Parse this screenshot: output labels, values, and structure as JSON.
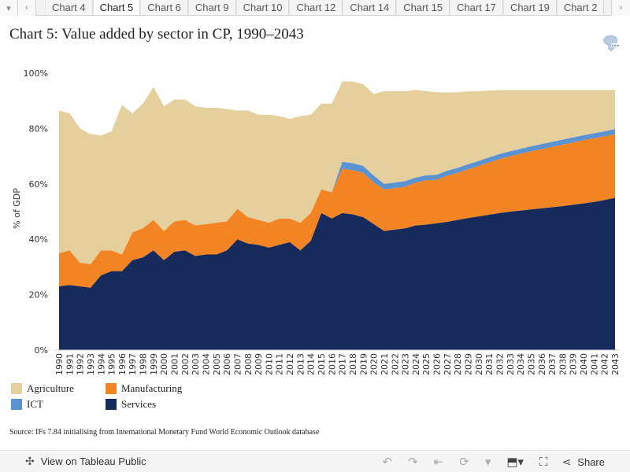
{
  "tabs": {
    "items": [
      "Chart 4",
      "Chart 5",
      "Chart 6",
      "Chart 9",
      "Chart 10",
      "Chart 12",
      "Chart 14",
      "Chart 15",
      "Chart 17",
      "Chart 19",
      "Chart 2"
    ],
    "active": "Chart 5",
    "prev_icon": "‹",
    "next_icon": "›",
    "menu_icon": "▾"
  },
  "title": "Chart 5: Value added by sector in CP, 1990–2043",
  "source": "Source: IFs 7.84 initialising from International Monetary Fund World Economic Outlook database",
  "footer": {
    "view_label": "View on Tableau Public",
    "share_label": "Share"
  },
  "colors": {
    "agriculture": "#e5cf9d",
    "manufacturing": "#f28424",
    "ict": "#5b92d1",
    "services": "#172a5c"
  },
  "chart_data": {
    "type": "area",
    "stacked": true,
    "ylabel": "% of GDP",
    "ylim": [
      0,
      100
    ],
    "yticks": [
      "0%",
      "20%",
      "40%",
      "60%",
      "80%",
      "100%"
    ],
    "x": [
      1990,
      1991,
      1992,
      1993,
      1994,
      1995,
      1996,
      1997,
      1998,
      1999,
      2000,
      2001,
      2002,
      2003,
      2004,
      2005,
      2006,
      2007,
      2008,
      2009,
      2010,
      2011,
      2012,
      2013,
      2014,
      2015,
      2016,
      2017,
      2018,
      2019,
      2020,
      2021,
      2022,
      2023,
      2024,
      2025,
      2026,
      2027,
      2028,
      2029,
      2030,
      2031,
      2032,
      2033,
      2034,
      2035,
      2036,
      2037,
      2038,
      2039,
      2040,
      2041,
      2042,
      2043
    ],
    "series": [
      {
        "name": "Services",
        "key": "services",
        "values": [
          23,
          23.5,
          23,
          22.5,
          27,
          28.5,
          28.5,
          32.5,
          33.5,
          36,
          32.5,
          35.5,
          36,
          34,
          34.5,
          34.5,
          36,
          40,
          38.5,
          38,
          37,
          38,
          39,
          36,
          39.5,
          49.5,
          47.5,
          49.5,
          49,
          48,
          45.5,
          43,
          43.5,
          44,
          45,
          45.3,
          45.8,
          46.3,
          47,
          47.7,
          48.3,
          48.9,
          49.5,
          50,
          50.4,
          50.8,
          51.2,
          51.6,
          52,
          52.5,
          53,
          53.5,
          54.2,
          55
        ]
      },
      {
        "name": "Manufacturing",
        "key": "manufacturing",
        "values": [
          12,
          12.5,
          8.5,
          8.5,
          9,
          7.5,
          6,
          10,
          10.5,
          11,
          10.5,
          11,
          11,
          11,
          11,
          11.5,
          10.5,
          11,
          9.5,
          9,
          9,
          9.5,
          8.5,
          10,
          10,
          8.5,
          9.5,
          16,
          16,
          16,
          15,
          15,
          15,
          15,
          15.5,
          16,
          15.7,
          16.7,
          17,
          17.6,
          18.2,
          18.9,
          19.5,
          20,
          20.5,
          21,
          21.4,
          21.8,
          22.2,
          22.5,
          22.8,
          23,
          23,
          23
        ]
      },
      {
        "name": "ICT",
        "key": "ict",
        "values": [
          0,
          0,
          0,
          0,
          0,
          0,
          0,
          0,
          0,
          0,
          0,
          0,
          0,
          0,
          0,
          0,
          0,
          0,
          0,
          0,
          0,
          0,
          0,
          0,
          0,
          0,
          0,
          2.5,
          2.5,
          2.5,
          2.5,
          2,
          2,
          2,
          1.8,
          1.8,
          1.8,
          1.8,
          1.8,
          1.8,
          1.8,
          1.8,
          1.8,
          1.8,
          1.8,
          1.8,
          1.8,
          1.8,
          1.8,
          1.8,
          1.8,
          1.8,
          1.8,
          1.8
        ]
      },
      {
        "name": "Agriculture",
        "key": "agriculture",
        "values": [
          51.5,
          49.5,
          48.5,
          47,
          41.5,
          43,
          54,
          43,
          45,
          48,
          45,
          44,
          43.5,
          43,
          42,
          41.5,
          40.5,
          35.5,
          38.5,
          38,
          39,
          37,
          36,
          38.5,
          35.5,
          31,
          32,
          29,
          29.5,
          29.5,
          29.5,
          33.5,
          33,
          32.5,
          31.7,
          30.4,
          29.8,
          28.2,
          27.3,
          26.3,
          25.2,
          24.1,
          23.1,
          22.1,
          21.2,
          20.3,
          19.5,
          18.7,
          17.9,
          17.1,
          16.3,
          15.6,
          14.9,
          14.2
        ]
      }
    ],
    "legend": [
      {
        "label": "Agriculture",
        "key": "agriculture"
      },
      {
        "label": "Manufacturing",
        "key": "manufacturing"
      },
      {
        "label": "ICT",
        "key": "ict"
      },
      {
        "label": "Services",
        "key": "services"
      }
    ],
    "legend_position": "bottom-left",
    "grid": false
  }
}
